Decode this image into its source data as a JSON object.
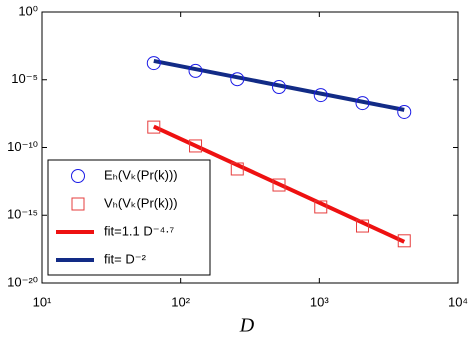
{
  "chart_data": {
    "type": "line",
    "x_label": "D",
    "x_log": true,
    "y_log": true,
    "grid": false,
    "legend": "lower-left",
    "xlim": [
      10,
      10000
    ],
    "xticks": [
      {
        "value": 10,
        "label": "10¹"
      },
      {
        "value": 100,
        "label": "10²"
      },
      {
        "value": 1000,
        "label": "10³"
      },
      {
        "value": 10000,
        "label": "10⁴"
      }
    ],
    "ylim": [
      1e-20,
      1
    ],
    "yticks": [
      {
        "value": 1,
        "label": "10⁰"
      },
      {
        "value": 1e-05,
        "label": "10⁻⁵"
      },
      {
        "value": 1e-10,
        "label": "10⁻¹⁰"
      },
      {
        "value": 1e-15,
        "label": "10⁻¹⁵"
      },
      {
        "value": 1e-20,
        "label": "10⁻²⁰"
      }
    ],
    "series": [
      {
        "name": "Eₕ(Vₖ(Pr(k)))",
        "color": "#1a1ae6",
        "marker": "circle",
        "x": [
          64,
          128,
          256,
          512,
          1024,
          2048,
          4096
        ],
        "values": [
          0.00017,
          4.5e-05,
          1.1e-05,
          2.9e-06,
          7.4e-07,
          1.9e-07,
          4.2e-08
        ]
      },
      {
        "name": "Vₕ(Vₖ(Pr(k)))",
        "color": "#e63c3c",
        "marker": "square",
        "x": [
          64,
          128,
          256,
          512,
          1024,
          2048,
          4096
        ],
        "values": [
          3.2e-09,
          1.3e-10,
          2.6e-12,
          1.7e-13,
          4.1e-15,
          1.6e-16,
          1.3e-17
        ]
      },
      {
        "name": "fit=1.1 D⁻⁴·⁷",
        "color": "#ee1111",
        "marker": "none",
        "x": [
          64,
          4096
        ],
        "values": [
          3.5e-09,
          1.1e-17
        ]
      },
      {
        "name": "fit= D⁻²",
        "color": "#122b86",
        "marker": "none",
        "x": [
          64,
          4096
        ],
        "values": [
          0.000244,
          5.96e-08
        ]
      }
    ]
  }
}
